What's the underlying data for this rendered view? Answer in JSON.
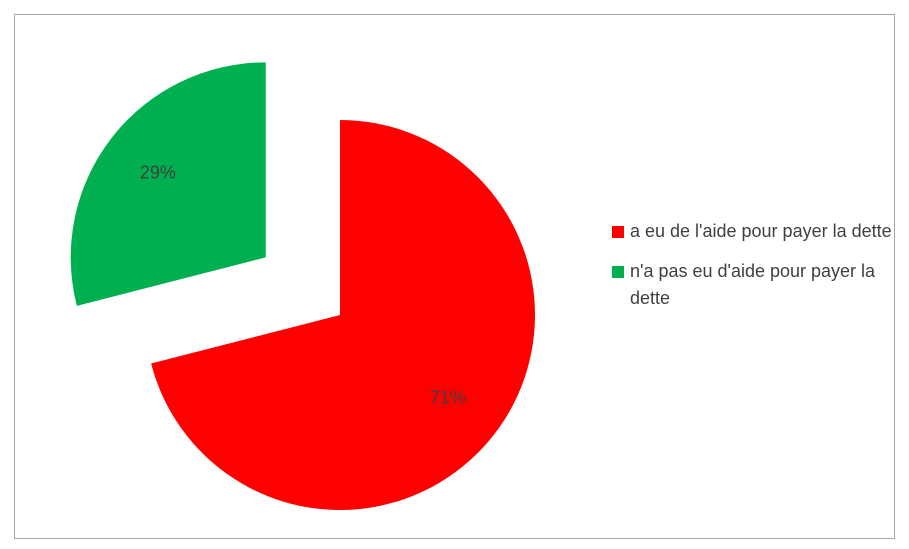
{
  "chart_data": {
    "type": "pie",
    "categories": [
      "a eu de l'aide pour payer la dette",
      "n'a pas eu d'aide pour payer la dette"
    ],
    "values": [
      71,
      29
    ],
    "value_labels": [
      "71%",
      "29%"
    ],
    "colors": [
      "#ff0000",
      "#00b050"
    ],
    "legend": "right"
  }
}
